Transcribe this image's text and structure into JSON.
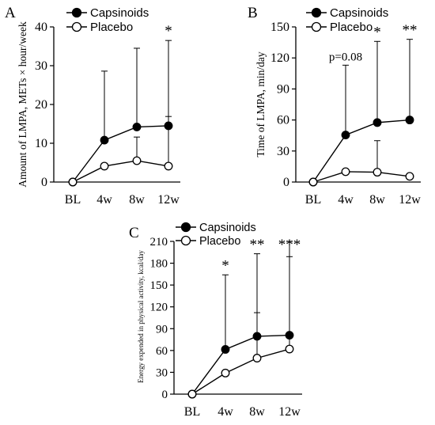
{
  "chart_data": [
    {
      "panel": "A",
      "type": "line",
      "categories": [
        "BL",
        "4w",
        "8w",
        "12w"
      ],
      "ylabel": "Amount of LMPA, METs × hour/week",
      "ylim": [
        0,
        40
      ],
      "yticks": [
        0,
        10,
        20,
        30,
        40
      ],
      "grid": false,
      "legend": "top-left",
      "series": [
        {
          "name": "Capsinoids",
          "marker": "filled",
          "values": [
            0,
            10.8,
            14.2,
            14.5
          ],
          "error_upper": [
            0,
            28.6,
            34.5,
            36.5
          ]
        },
        {
          "name": "Placebo",
          "marker": "open",
          "values": [
            0,
            4.1,
            5.5,
            4.1
          ],
          "error_upper": [
            0,
            4.1,
            11.6,
            16.9
          ]
        }
      ],
      "annotations": [
        {
          "category": "12w",
          "text": "*"
        }
      ]
    },
    {
      "panel": "B",
      "type": "line",
      "categories": [
        "BL",
        "4w",
        "8w",
        "12w"
      ],
      "ylabel": "Time of LMPA, min/day",
      "ylim": [
        0,
        150
      ],
      "yticks": [
        0,
        30,
        60,
        90,
        120,
        150
      ],
      "grid": false,
      "legend": "top-left",
      "series": [
        {
          "name": "Capsinoids",
          "marker": "filled",
          "values": [
            0,
            45.5,
            57.5,
            60
          ],
          "error_upper": [
            0,
            113,
            136,
            138
          ]
        },
        {
          "name": "Placebo",
          "marker": "open",
          "values": [
            0,
            10,
            9.5,
            5.5
          ],
          "error_upper": [
            0,
            10,
            40,
            5.5
          ]
        }
      ],
      "annotations": [
        {
          "category": "4w",
          "text": "p=0.08"
        },
        {
          "category": "8w",
          "text": "*"
        },
        {
          "category": "12w",
          "text": "**"
        }
      ]
    },
    {
      "panel": "C",
      "type": "line",
      "categories": [
        "BL",
        "4w",
        "8w",
        "12w"
      ],
      "ylabel": "Energy expended in physical activity, kcal/day",
      "ylim": [
        0,
        210
      ],
      "yticks": [
        0,
        30,
        60,
        90,
        120,
        150,
        180,
        210
      ],
      "grid": false,
      "legend": "top-left",
      "series": [
        {
          "name": "Capsinoids",
          "marker": "filled",
          "values": [
            0,
            61.5,
            79.5,
            81
          ],
          "error_upper": [
            0,
            164,
            193,
            210
          ]
        },
        {
          "name": "Placebo",
          "marker": "open",
          "values": [
            0,
            29,
            49.5,
            62
          ],
          "error_upper": [
            0,
            29,
            112,
            189
          ]
        }
      ],
      "annotations": [
        {
          "category": "4w",
          "text": "*"
        },
        {
          "category": "8w",
          "text": "**"
        },
        {
          "category": "12w",
          "text": "***"
        }
      ]
    }
  ]
}
